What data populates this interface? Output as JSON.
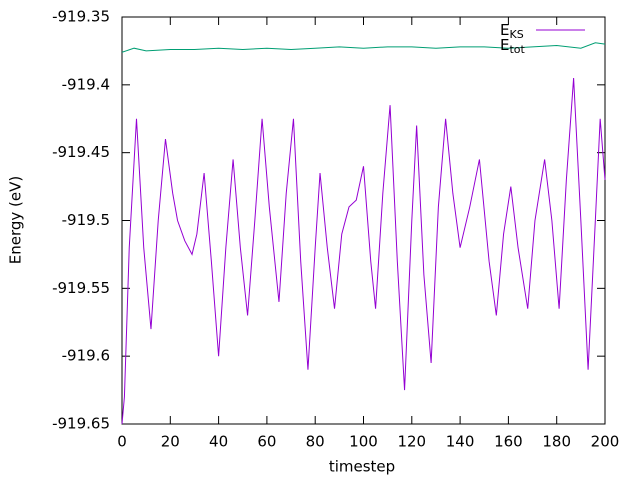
{
  "chart_data": {
    "type": "line",
    "xlabel": "timestep",
    "ylabel": "Energy (eV)",
    "xlim": [
      0,
      200
    ],
    "xticks": [
      0,
      20,
      40,
      60,
      80,
      100,
      120,
      140,
      160,
      180,
      200
    ],
    "ylim": [
      -919.65,
      -919.35
    ],
    "yticks": [
      -919.65,
      -919.6,
      -919.55,
      -919.5,
      -919.45,
      -919.4,
      -919.35
    ],
    "legend": "top-right",
    "series": [
      {
        "name": "EKS",
        "color": "#9400d3",
        "x": [
          0,
          1,
          3,
          6,
          9,
          12,
          15,
          18,
          21,
          23,
          26,
          29,
          31,
          34,
          37,
          40,
          43,
          46,
          49,
          52,
          55,
          58,
          61,
          65,
          68,
          71,
          74,
          77,
          80,
          82,
          85,
          88,
          91,
          94,
          97,
          100,
          103,
          105,
          108,
          111,
          114,
          117,
          120,
          122,
          125,
          128,
          131,
          134,
          137,
          140,
          144,
          148,
          152,
          155,
          158,
          161,
          164,
          168,
          171,
          175,
          178,
          181,
          184,
          187,
          190,
          193,
          196,
          198,
          200
        ],
        "values": [
          -919.65,
          -919.63,
          -919.52,
          -919.425,
          -919.52,
          -919.58,
          -919.5,
          -919.44,
          -919.48,
          -919.5,
          -919.515,
          -919.525,
          -919.51,
          -919.465,
          -919.53,
          -919.6,
          -919.52,
          -919.455,
          -919.52,
          -919.57,
          -919.5,
          -919.425,
          -919.49,
          -919.56,
          -919.48,
          -919.425,
          -919.53,
          -919.61,
          -919.52,
          -919.465,
          -919.52,
          -919.565,
          -919.51,
          -919.49,
          -919.485,
          -919.46,
          -919.53,
          -919.565,
          -919.48,
          -919.415,
          -919.53,
          -919.625,
          -919.5,
          -919.43,
          -919.54,
          -919.605,
          -919.49,
          -919.425,
          -919.48,
          -919.52,
          -919.49,
          -919.455,
          -919.53,
          -919.57,
          -919.51,
          -919.475,
          -919.52,
          -919.565,
          -919.5,
          -919.455,
          -919.5,
          -919.565,
          -919.47,
          -919.395,
          -919.5,
          -919.61,
          -919.5,
          -919.425,
          -919.47
        ]
      },
      {
        "name": "Etot",
        "color": "#009e73",
        "x": [
          0,
          5,
          10,
          20,
          30,
          40,
          50,
          60,
          70,
          80,
          90,
          100,
          110,
          120,
          130,
          140,
          150,
          160,
          170,
          180,
          190,
          196,
          200
        ],
        "values": [
          -919.376,
          -919.373,
          -919.375,
          -919.374,
          -919.374,
          -919.373,
          -919.374,
          -919.373,
          -919.374,
          -919.373,
          -919.372,
          -919.373,
          -919.372,
          -919.372,
          -919.373,
          -919.372,
          -919.372,
          -919.373,
          -919.372,
          -919.371,
          -919.373,
          -919.369,
          -919.37
        ]
      }
    ]
  }
}
